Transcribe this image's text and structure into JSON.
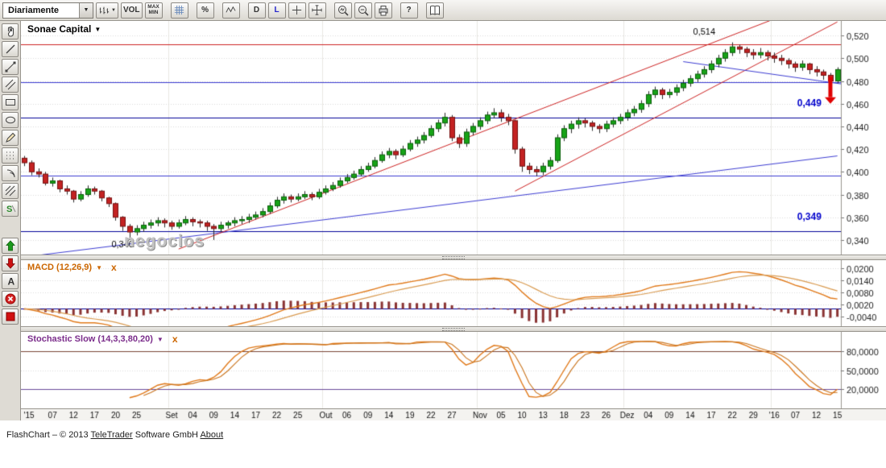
{
  "toolbar": {
    "timeframe_value": "Diariamente",
    "vol_label": "VOL",
    "max_label": "MAX",
    "min_label": "MIN",
    "percent_label": "%",
    "d_label": "D",
    "l_label": "L",
    "help_label": "?"
  },
  "icons": {
    "dropdown_arrow": "▼",
    "indicator_arrow": "▼"
  },
  "sidebar": {
    "tools": [
      "pan",
      "line",
      "trendline",
      "channel",
      "rectangle",
      "ellipse",
      "pencil",
      "dotted-grid",
      "arcs",
      "hatch",
      "fibonacci",
      "arrow-up",
      "arrow-down",
      "text",
      "delete",
      "color-swatch"
    ],
    "text_tool_label": "A",
    "fib_label": "S"
  },
  "price_panel": {
    "symbol": "Sonae Capital",
    "watermark": "negocios"
  },
  "macd_panel": {
    "label": "MACD (12,26,9)",
    "close_label": "x"
  },
  "stoch_panel": {
    "label": "Stochastic Slow (14,3,3,80,20)",
    "close_label": "x"
  },
  "footer": {
    "prefix": "FlashChart – © 2013 ",
    "link1": "TeleTrader",
    "mid": " Software GmbH ",
    "link2": "About"
  },
  "chart_data": {
    "type": "candlestick",
    "symbol": "Sonae Capital",
    "timeframe": "Diariamente",
    "price_axis": {
      "min": 0.33,
      "max": 0.53,
      "ticks": [
        {
          "v": 0.52,
          "label": "0,520"
        },
        {
          "v": 0.5,
          "label": "0,500"
        },
        {
          "v": 0.48,
          "label": "0,480"
        },
        {
          "v": 0.46,
          "label": "0,460"
        },
        {
          "v": 0.44,
          "label": "0,440"
        },
        {
          "v": 0.42,
          "label": "0,420"
        },
        {
          "v": 0.4,
          "label": "0,400"
        },
        {
          "v": 0.38,
          "label": "0,380"
        },
        {
          "v": 0.36,
          "label": "0,360"
        },
        {
          "v": 0.34,
          "label": "0,340"
        }
      ]
    },
    "macd_axis": {
      "min": -0.0075,
      "max": 0.023,
      "ticks": [
        {
          "v": 0.02,
          "label": "0,0200"
        },
        {
          "v": 0.014,
          "label": "0,0140"
        },
        {
          "v": 0.008,
          "label": "0,0080"
        },
        {
          "v": 0.002,
          "label": "0,0020"
        },
        {
          "v": -0.004,
          "label": "-0,0040"
        }
      ]
    },
    "stoch_axis": {
      "min": -5,
      "max": 105,
      "upper": 80,
      "lower": 20,
      "ticks": [
        {
          "v": 80,
          "label": "80,0000"
        },
        {
          "v": 50,
          "label": "50,0000"
        },
        {
          "v": 20,
          "label": "20,0000"
        }
      ]
    },
    "x_ticks": [
      {
        "i": 0,
        "label": "'15"
      },
      {
        "i": 4,
        "label": "07"
      },
      {
        "i": 7,
        "label": "12"
      },
      {
        "i": 10,
        "label": "17"
      },
      {
        "i": 13,
        "label": "20"
      },
      {
        "i": 16,
        "label": "25"
      },
      {
        "i": 21,
        "label": "Set"
      },
      {
        "i": 24,
        "label": "04"
      },
      {
        "i": 27,
        "label": "09"
      },
      {
        "i": 30,
        "label": "14"
      },
      {
        "i": 33,
        "label": "17"
      },
      {
        "i": 36,
        "label": "22"
      },
      {
        "i": 39,
        "label": "25"
      },
      {
        "i": 43,
        "label": "Out"
      },
      {
        "i": 46,
        "label": "06"
      },
      {
        "i": 49,
        "label": "09"
      },
      {
        "i": 52,
        "label": "14"
      },
      {
        "i": 55,
        "label": "19"
      },
      {
        "i": 58,
        "label": "22"
      },
      {
        "i": 61,
        "label": "27"
      },
      {
        "i": 65,
        "label": "Nov"
      },
      {
        "i": 68,
        "label": "05"
      },
      {
        "i": 71,
        "label": "10"
      },
      {
        "i": 74,
        "label": "13"
      },
      {
        "i": 77,
        "label": "18"
      },
      {
        "i": 80,
        "label": "23"
      },
      {
        "i": 83,
        "label": "26"
      },
      {
        "i": 86,
        "label": "Dez"
      },
      {
        "i": 89,
        "label": "04"
      },
      {
        "i": 92,
        "label": "09"
      },
      {
        "i": 95,
        "label": "14"
      },
      {
        "i": 98,
        "label": "17"
      },
      {
        "i": 101,
        "label": "22"
      },
      {
        "i": 104,
        "label": "29"
      },
      {
        "i": 107,
        "label": "'16"
      },
      {
        "i": 110,
        "label": "07"
      },
      {
        "i": 113,
        "label": "12"
      },
      {
        "i": 116,
        "label": "15"
      }
    ],
    "month_start_indices": [
      21,
      43,
      65,
      86,
      107
    ],
    "annotations": [
      {
        "text": "0,514",
        "i": 97,
        "price": 0.5205,
        "color": "#000000",
        "weight": "normal",
        "align": "center"
      },
      {
        "text": "0,340",
        "i": 14,
        "price": 0.3335,
        "color": "#000000",
        "weight": "normal",
        "align": "center"
      },
      {
        "text": "0,449",
        "i": 112,
        "price": 0.4575,
        "color": "#0000cc",
        "weight": "bold",
        "align": "center"
      },
      {
        "text": "0,349",
        "i": 112,
        "price": 0.3575,
        "color": "#0000cc",
        "weight": "bold",
        "align": "center"
      }
    ],
    "overlays": {
      "horizontal_lines": [
        {
          "price": 0.512,
          "color": "#cc2222"
        },
        {
          "price": 0.479,
          "color": "#3b3bd1"
        },
        {
          "price": 0.448,
          "color": "#000099"
        },
        {
          "price": 0.397,
          "color": "#3b3bd1"
        },
        {
          "price": 0.348,
          "color": "#000099"
        }
      ],
      "trend_lines": [
        {
          "x1": 0,
          "p1": 0.325,
          "x2": 116,
          "p2": 0.414,
          "color": "#3b3bd1"
        },
        {
          "x1": 22,
          "p1": 0.332,
          "x2": 108,
          "p2": 0.537,
          "color": "#cc2222"
        },
        {
          "x1": 70,
          "p1": 0.383,
          "x2": 116,
          "p2": 0.532,
          "color": "#cc2222"
        },
        {
          "x1": 94,
          "p1": 0.497,
          "x2": 117,
          "p2": 0.477,
          "color": "#3b3bd1"
        }
      ],
      "down_arrow": {
        "i": 115,
        "from": 0.4835,
        "to": 0.46,
        "color": "#e00000"
      }
    },
    "indicators": {
      "macd": {
        "fast": 12,
        "slow": 26,
        "signal": 9
      },
      "stochastic": {
        "period": 14,
        "slowing": 3,
        "d": 3,
        "upper": 80,
        "lower": 20
      }
    },
    "colors": {
      "up": "#17a317",
      "up_border": "#0b5e0b",
      "down": "#c32222",
      "down_border": "#741111",
      "macd_line": "#e07818",
      "macd_signal": "#d89a50",
      "macd_hist": "#8a3333",
      "stoch_k": "#e07818",
      "stoch_d": "#c9731c",
      "grid": "#d9d9d9",
      "axis_text": "#222222"
    },
    "candles": [
      [
        0.412,
        0.414,
        0.405,
        0.408
      ],
      [
        0.408,
        0.41,
        0.397,
        0.4
      ],
      [
        0.4,
        0.403,
        0.395,
        0.398
      ],
      [
        0.398,
        0.4,
        0.388,
        0.39
      ],
      [
        0.39,
        0.395,
        0.387,
        0.392
      ],
      [
        0.392,
        0.393,
        0.382,
        0.385
      ],
      [
        0.385,
        0.388,
        0.38,
        0.383
      ],
      [
        0.383,
        0.384,
        0.373,
        0.376
      ],
      [
        0.376,
        0.383,
        0.374,
        0.38
      ],
      [
        0.38,
        0.388,
        0.378,
        0.385
      ],
      [
        0.385,
        0.387,
        0.38,
        0.383
      ],
      [
        0.383,
        0.384,
        0.374,
        0.377
      ],
      [
        0.377,
        0.378,
        0.369,
        0.372
      ],
      [
        0.372,
        0.373,
        0.357,
        0.36
      ],
      [
        0.36,
        0.361,
        0.348,
        0.352
      ],
      [
        0.352,
        0.354,
        0.342,
        0.347
      ],
      [
        0.347,
        0.353,
        0.344,
        0.35
      ],
      [
        0.35,
        0.356,
        0.347,
        0.353
      ],
      [
        0.353,
        0.358,
        0.35,
        0.355
      ],
      [
        0.355,
        0.36,
        0.352,
        0.357
      ],
      [
        0.357,
        0.359,
        0.351,
        0.355
      ],
      [
        0.355,
        0.357,
        0.349,
        0.352
      ],
      [
        0.352,
        0.358,
        0.35,
        0.355
      ],
      [
        0.355,
        0.361,
        0.353,
        0.358
      ],
      [
        0.358,
        0.36,
        0.352,
        0.356
      ],
      [
        0.356,
        0.358,
        0.351,
        0.355
      ],
      [
        0.355,
        0.357,
        0.348,
        0.352
      ],
      [
        0.352,
        0.354,
        0.34,
        0.35
      ],
      [
        0.35,
        0.356,
        0.347,
        0.353
      ],
      [
        0.353,
        0.357,
        0.35,
        0.355
      ],
      [
        0.355,
        0.36,
        0.352,
        0.357
      ],
      [
        0.357,
        0.361,
        0.354,
        0.358
      ],
      [
        0.358,
        0.363,
        0.355,
        0.36
      ],
      [
        0.36,
        0.365,
        0.358,
        0.362
      ],
      [
        0.362,
        0.368,
        0.36,
        0.365
      ],
      [
        0.365,
        0.373,
        0.363,
        0.37
      ],
      [
        0.37,
        0.378,
        0.368,
        0.375
      ],
      [
        0.375,
        0.381,
        0.372,
        0.378
      ],
      [
        0.378,
        0.38,
        0.373,
        0.376
      ],
      [
        0.376,
        0.381,
        0.374,
        0.378
      ],
      [
        0.378,
        0.383,
        0.376,
        0.38
      ],
      [
        0.38,
        0.382,
        0.375,
        0.378
      ],
      [
        0.378,
        0.385,
        0.376,
        0.382
      ],
      [
        0.382,
        0.388,
        0.38,
        0.385
      ],
      [
        0.385,
        0.391,
        0.383,
        0.388
      ],
      [
        0.388,
        0.395,
        0.386,
        0.392
      ],
      [
        0.392,
        0.398,
        0.39,
        0.395
      ],
      [
        0.395,
        0.401,
        0.393,
        0.398
      ],
      [
        0.398,
        0.405,
        0.396,
        0.402
      ],
      [
        0.402,
        0.408,
        0.4,
        0.405
      ],
      [
        0.405,
        0.413,
        0.403,
        0.41
      ],
      [
        0.41,
        0.418,
        0.408,
        0.415
      ],
      [
        0.415,
        0.421,
        0.412,
        0.418
      ],
      [
        0.418,
        0.42,
        0.411,
        0.415
      ],
      [
        0.415,
        0.423,
        0.413,
        0.42
      ],
      [
        0.42,
        0.428,
        0.418,
        0.425
      ],
      [
        0.425,
        0.431,
        0.422,
        0.428
      ],
      [
        0.428,
        0.435,
        0.425,
        0.432
      ],
      [
        0.432,
        0.441,
        0.43,
        0.438
      ],
      [
        0.438,
        0.446,
        0.435,
        0.443
      ],
      [
        0.443,
        0.452,
        0.44,
        0.448
      ],
      [
        0.448,
        0.45,
        0.427,
        0.43
      ],
      [
        0.43,
        0.433,
        0.421,
        0.425
      ],
      [
        0.425,
        0.438,
        0.422,
        0.435
      ],
      [
        0.435,
        0.443,
        0.432,
        0.44
      ],
      [
        0.44,
        0.448,
        0.437,
        0.445
      ],
      [
        0.445,
        0.453,
        0.442,
        0.45
      ],
      [
        0.45,
        0.456,
        0.447,
        0.452
      ],
      [
        0.452,
        0.455,
        0.444,
        0.448
      ],
      [
        0.448,
        0.451,
        0.441,
        0.445
      ],
      [
        0.445,
        0.446,
        0.416,
        0.42
      ],
      [
        0.42,
        0.422,
        0.4,
        0.405
      ],
      [
        0.405,
        0.408,
        0.398,
        0.402
      ],
      [
        0.402,
        0.405,
        0.396,
        0.4
      ],
      [
        0.4,
        0.408,
        0.397,
        0.405
      ],
      [
        0.405,
        0.413,
        0.402,
        0.41
      ],
      [
        0.41,
        0.433,
        0.408,
        0.43
      ],
      [
        0.43,
        0.441,
        0.427,
        0.438
      ],
      [
        0.438,
        0.445,
        0.434,
        0.442
      ],
      [
        0.442,
        0.448,
        0.438,
        0.445
      ],
      [
        0.445,
        0.447,
        0.439,
        0.443
      ],
      [
        0.443,
        0.445,
        0.436,
        0.44
      ],
      [
        0.44,
        0.442,
        0.434,
        0.438
      ],
      [
        0.438,
        0.445,
        0.435,
        0.442
      ],
      [
        0.442,
        0.448,
        0.439,
        0.445
      ],
      [
        0.445,
        0.451,
        0.442,
        0.448
      ],
      [
        0.448,
        0.455,
        0.445,
        0.452
      ],
      [
        0.452,
        0.458,
        0.449,
        0.455
      ],
      [
        0.455,
        0.463,
        0.452,
        0.46
      ],
      [
        0.46,
        0.471,
        0.457,
        0.468
      ],
      [
        0.468,
        0.475,
        0.465,
        0.472
      ],
      [
        0.472,
        0.474,
        0.464,
        0.468
      ],
      [
        0.468,
        0.473,
        0.465,
        0.47
      ],
      [
        0.47,
        0.477,
        0.467,
        0.474
      ],
      [
        0.474,
        0.481,
        0.471,
        0.478
      ],
      [
        0.478,
        0.485,
        0.475,
        0.482
      ],
      [
        0.482,
        0.489,
        0.479,
        0.486
      ],
      [
        0.486,
        0.493,
        0.483,
        0.49
      ],
      [
        0.49,
        0.498,
        0.487,
        0.495
      ],
      [
        0.495,
        0.503,
        0.492,
        0.5
      ],
      [
        0.5,
        0.508,
        0.497,
        0.505
      ],
      [
        0.505,
        0.514,
        0.502,
        0.51
      ],
      [
        0.51,
        0.512,
        0.504,
        0.508
      ],
      [
        0.508,
        0.51,
        0.501,
        0.505
      ],
      [
        0.505,
        0.508,
        0.499,
        0.503
      ],
      [
        0.503,
        0.509,
        0.5,
        0.505
      ],
      [
        0.505,
        0.507,
        0.498,
        0.502
      ],
      [
        0.502,
        0.505,
        0.496,
        0.5
      ],
      [
        0.5,
        0.503,
        0.494,
        0.498
      ],
      [
        0.498,
        0.5,
        0.491,
        0.495
      ],
      [
        0.495,
        0.497,
        0.488,
        0.492
      ],
      [
        0.492,
        0.498,
        0.489,
        0.495
      ],
      [
        0.495,
        0.496,
        0.486,
        0.49
      ],
      [
        0.49,
        0.493,
        0.484,
        0.488
      ],
      [
        0.488,
        0.49,
        0.481,
        0.485
      ],
      [
        0.485,
        0.487,
        0.477,
        0.48
      ],
      [
        0.48,
        0.492,
        0.478,
        0.49
      ]
    ]
  }
}
